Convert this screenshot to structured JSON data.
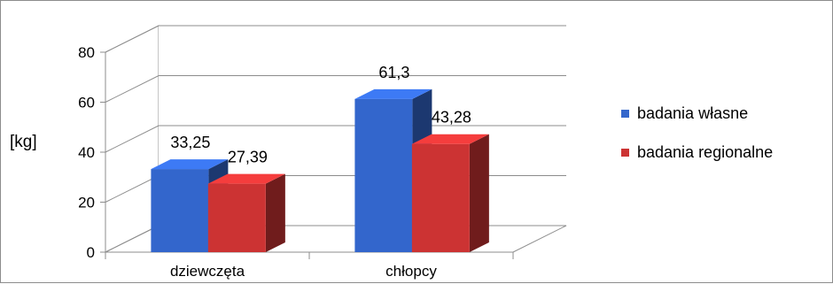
{
  "chart_data": {
    "type": "bar",
    "three_d": true,
    "categories": [
      "dziewczęta",
      "chłopcy"
    ],
    "series": [
      {
        "name": "badania własne",
        "values": [
          33.25,
          61.3
        ],
        "labels": [
          "33,25",
          "61,3"
        ],
        "color": "#3366cc"
      },
      {
        "name": "badania regionalne",
        "values": [
          27.39,
          43.28
        ],
        "labels": [
          "27,39",
          "43,28"
        ],
        "color": "#cc3333"
      }
    ],
    "ylabel": "[kg]",
    "ylim": [
      0,
      80
    ],
    "yticks": [
      0,
      20,
      40,
      60,
      80
    ],
    "ytick_labels": [
      "0",
      "20",
      "40",
      "60",
      "80"
    ],
    "grid": true,
    "legend_position": "right"
  }
}
